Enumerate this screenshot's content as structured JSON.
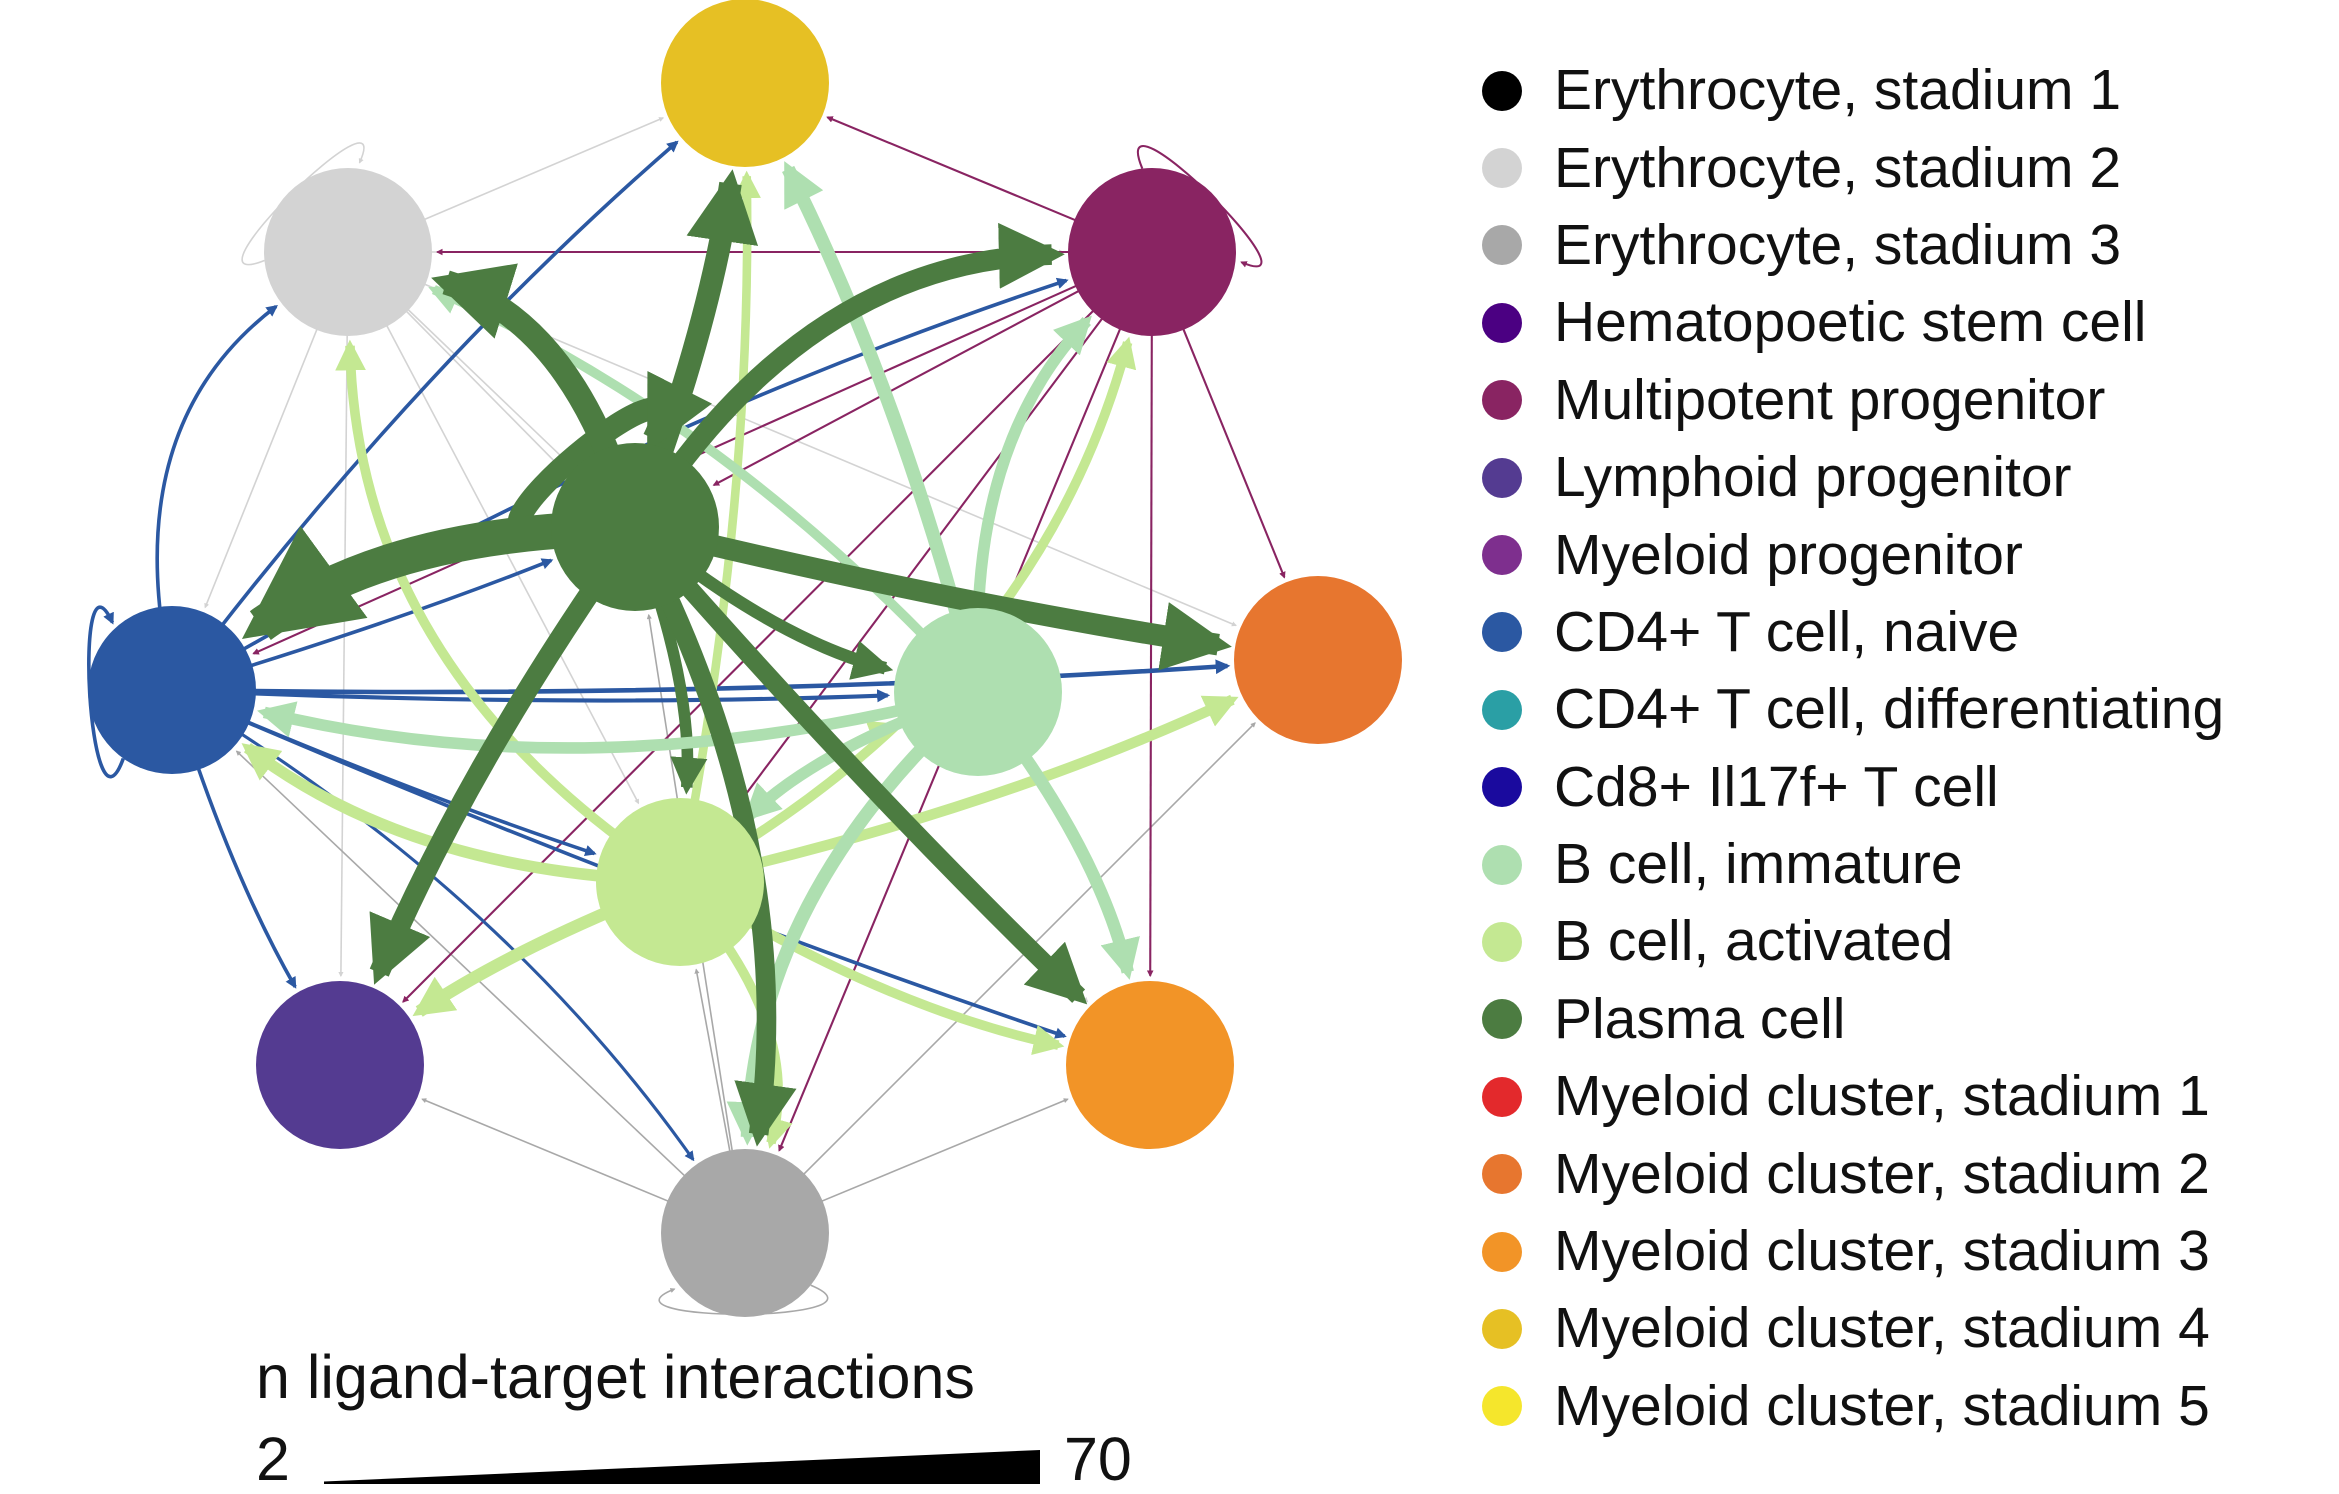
{
  "nodes": [
    {
      "id": "ery1",
      "color": "#000000"
    },
    {
      "id": "ery2",
      "color": "#d3d3d3"
    },
    {
      "id": "ery3",
      "color": "#a8a8a8"
    },
    {
      "id": "hsc",
      "color": "#4b0082"
    },
    {
      "id": "mpp",
      "color": "#892462"
    },
    {
      "id": "lymph",
      "color": "#543b91"
    },
    {
      "id": "myprog",
      "color": "#7e2f8e"
    },
    {
      "id": "cd4n",
      "color": "#2b58a2"
    },
    {
      "id": "cd4d",
      "color": "#2a9fa5"
    },
    {
      "id": "cd8",
      "color": "#1a0a9e"
    },
    {
      "id": "bimm",
      "color": "#aedfb0"
    },
    {
      "id": "bact",
      "color": "#c4e892"
    },
    {
      "id": "plasma",
      "color": "#4c7c41"
    },
    {
      "id": "my1",
      "color": "#e3292c"
    },
    {
      "id": "my2",
      "color": "#e7762f"
    },
    {
      "id": "my3",
      "color": "#f29427"
    },
    {
      "id": "my4",
      "color": "#e6c024"
    },
    {
      "id": "my5",
      "color": "#f5e62c"
    }
  ],
  "edges": [
    {
      "from": "plasma",
      "to": "cd4n",
      "n": 70,
      "bend": 0.15
    },
    {
      "from": "plasma",
      "to": "ery2",
      "n": 48,
      "bend": 0.25
    },
    {
      "from": "plasma",
      "to": "my4",
      "n": 44,
      "bend": 0.05
    },
    {
      "from": "plasma",
      "to": "mpp",
      "n": 40,
      "bend": -0.25
    },
    {
      "from": "plasma",
      "to": "my2",
      "n": 42,
      "bend": 0.02
    },
    {
      "from": "plasma",
      "to": "my3",
      "n": 36,
      "bend": 0.02
    },
    {
      "from": "plasma",
      "to": "ery3",
      "n": 38,
      "bend": -0.15
    },
    {
      "from": "plasma",
      "to": "lymph",
      "n": 40,
      "bend": 0.05
    },
    {
      "from": "plasma",
      "to": "bimm",
      "n": 24,
      "bend": 0.1
    },
    {
      "from": "plasma",
      "to": "bact",
      "n": 22,
      "bend": -0.1
    },
    {
      "from": "plasma",
      "to": "plasma",
      "n": 44,
      "loop": true
    },
    {
      "from": "bimm",
      "to": "my4",
      "n": 26,
      "bend": 0.05
    },
    {
      "from": "bimm",
      "to": "my3",
      "n": 24,
      "bend": -0.1
    },
    {
      "from": "bimm",
      "to": "ery3",
      "n": 26,
      "bend": 0.2
    },
    {
      "from": "bimm",
      "to": "mpp",
      "n": 22,
      "bend": -0.2
    },
    {
      "from": "bimm",
      "to": "cd4n",
      "n": 22,
      "bend": -0.12
    },
    {
      "from": "bimm",
      "to": "ery2",
      "n": 18,
      "bend": 0.1
    },
    {
      "from": "bimm",
      "to": "bact",
      "n": 22,
      "bend": 0.1
    },
    {
      "from": "bact",
      "to": "lymph",
      "n": 24,
      "bend": 0.05
    },
    {
      "from": "bact",
      "to": "cd4n",
      "n": 22,
      "bend": -0.15
    },
    {
      "from": "bact",
      "to": "my2",
      "n": 20,
      "bend": 0.05
    },
    {
      "from": "bact",
      "to": "mpp",
      "n": 18,
      "bend": 0.2
    },
    {
      "from": "bact",
      "to": "my3",
      "n": 18,
      "bend": 0.08
    },
    {
      "from": "bact",
      "to": "ery2",
      "n": 18,
      "bend": -0.25
    },
    {
      "from": "bact",
      "to": "my4",
      "n": 16,
      "bend": 0.05
    },
    {
      "from": "bact",
      "to": "ery3",
      "n": 18,
      "bend": -0.25
    },
    {
      "from": "bact",
      "to": "bimm",
      "n": 16,
      "bend": -0.1
    },
    {
      "from": "cd4n",
      "to": "my2",
      "n": 8,
      "bend": 0.02
    },
    {
      "from": "cd4n",
      "to": "bimm",
      "n": 7,
      "bend": 0.02
    },
    {
      "from": "cd4n",
      "to": "my4",
      "n": 6,
      "bend": -0.05
    },
    {
      "from": "cd4n",
      "to": "mpp",
      "n": 6,
      "bend": -0.05
    },
    {
      "from": "cd4n",
      "to": "ery2",
      "n": 6,
      "bend": -0.3
    },
    {
      "from": "cd4n",
      "to": "lymph",
      "n": 6,
      "bend": 0.05
    },
    {
      "from": "cd4n",
      "to": "plasma",
      "n": 6,
      "bend": 0.02
    },
    {
      "from": "cd4n",
      "to": "bact",
      "n": 6,
      "bend": 0.02
    },
    {
      "from": "cd4n",
      "to": "my3",
      "n": 6,
      "bend": 0.02
    },
    {
      "from": "cd4n",
      "to": "ery3",
      "n": 5,
      "bend": -0.1
    },
    {
      "from": "cd4n",
      "to": "cd4n",
      "n": 6,
      "loop": true
    },
    {
      "from": "mpp",
      "to": "my2",
      "n": 3,
      "bend": 0.0
    },
    {
      "from": "mpp",
      "to": "my3",
      "n": 3,
      "bend": 0.0
    },
    {
      "from": "mpp",
      "to": "my4",
      "n": 3,
      "bend": 0.0
    },
    {
      "from": "mpp",
      "to": "cd4n",
      "n": 3,
      "bend": 0.0
    },
    {
      "from": "mpp",
      "to": "lymph",
      "n": 3,
      "bend": 0.0
    },
    {
      "from": "mpp",
      "to": "plasma",
      "n": 3,
      "bend": 0.0
    },
    {
      "from": "mpp",
      "to": "ery2",
      "n": 3,
      "bend": 0.0
    },
    {
      "from": "mpp",
      "to": "ery3",
      "n": 3,
      "bend": 0.0
    },
    {
      "from": "mpp",
      "to": "bact",
      "n": 3,
      "bend": 0.0
    },
    {
      "from": "mpp",
      "to": "mpp",
      "n": 3,
      "loop": true
    },
    {
      "from": "ery2",
      "to": "lymph",
      "n": 2,
      "bend": 0.0
    },
    {
      "from": "ery2",
      "to": "cd4n",
      "n": 2,
      "bend": 0.0
    },
    {
      "from": "ery2",
      "to": "my4",
      "n": 2,
      "bend": 0.0
    },
    {
      "from": "ery2",
      "to": "mpp",
      "n": 2,
      "bend": 0.0
    },
    {
      "from": "ery2",
      "to": "plasma",
      "n": 2,
      "bend": 0.0
    },
    {
      "from": "ery2",
      "to": "my3",
      "n": 2,
      "bend": 0.0
    },
    {
      "from": "ery2",
      "to": "bact",
      "n": 2,
      "bend": 0.0
    },
    {
      "from": "ery2",
      "to": "my2",
      "n": 2,
      "bend": 0.0
    },
    {
      "from": "ery2",
      "to": "ery2",
      "n": 2,
      "loop": true
    },
    {
      "from": "ery3",
      "to": "lymph",
      "n": 2,
      "bend": 0.0
    },
    {
      "from": "ery3",
      "to": "cd4n",
      "n": 2,
      "bend": 0.0
    },
    {
      "from": "ery3",
      "to": "my3",
      "n": 2,
      "bend": 0.0
    },
    {
      "from": "ery3",
      "to": "my2",
      "n": 2,
      "bend": 0.0
    },
    {
      "from": "ery3",
      "to": "bact",
      "n": 2,
      "bend": 0.0
    },
    {
      "from": "ery3",
      "to": "plasma",
      "n": 2,
      "bend": 0.0
    },
    {
      "from": "ery3",
      "to": "ery3",
      "n": 2,
      "loop": true
    }
  ],
  "legend": {
    "items": [
      {
        "label": "Erythrocyte, stadium 1",
        "color": "#000000"
      },
      {
        "label": "Erythrocyte, stadium 2",
        "color": "#d3d3d3"
      },
      {
        "label": "Erythrocyte, stadium 3",
        "color": "#a8a8a8"
      },
      {
        "label": "Hematopoetic stem cell",
        "color": "#4b0082"
      },
      {
        "label": "Multipotent progenitor",
        "color": "#892462"
      },
      {
        "label": "Lymphoid progenitor",
        "color": "#543b91"
      },
      {
        "label": "Myeloid progenitor",
        "color": "#7e2f8e"
      },
      {
        "label": "CD4+ T cell, naive",
        "color": "#2b58a2"
      },
      {
        "label": "CD4+ T cell, differentiating",
        "color": "#2a9fa5"
      },
      {
        "label": "Cd8+ Il17f+ T cell",
        "color": "#1a0a9e"
      },
      {
        "label": "B cell, immature",
        "color": "#aedfb0"
      },
      {
        "label": "B cell, activated",
        "color": "#c4e892"
      },
      {
        "label": "Plasma cell",
        "color": "#4c7c41"
      },
      {
        "label": "Myeloid cluster, stadium 1",
        "color": "#e3292c"
      },
      {
        "label": "Myeloid cluster, stadium 2",
        "color": "#e7762f"
      },
      {
        "label": "Myeloid cluster, stadium 3",
        "color": "#f29427"
      },
      {
        "label": "Myeloid cluster, stadium 4",
        "color": "#e6c024"
      },
      {
        "label": "Myeloid cluster, stadium 5",
        "color": "#f5e62c"
      }
    ]
  },
  "scale": {
    "title": "n ligand-target interactions",
    "min_label": "2",
    "max_label": "70",
    "min": 2,
    "max": 70,
    "color": "#000000"
  }
}
